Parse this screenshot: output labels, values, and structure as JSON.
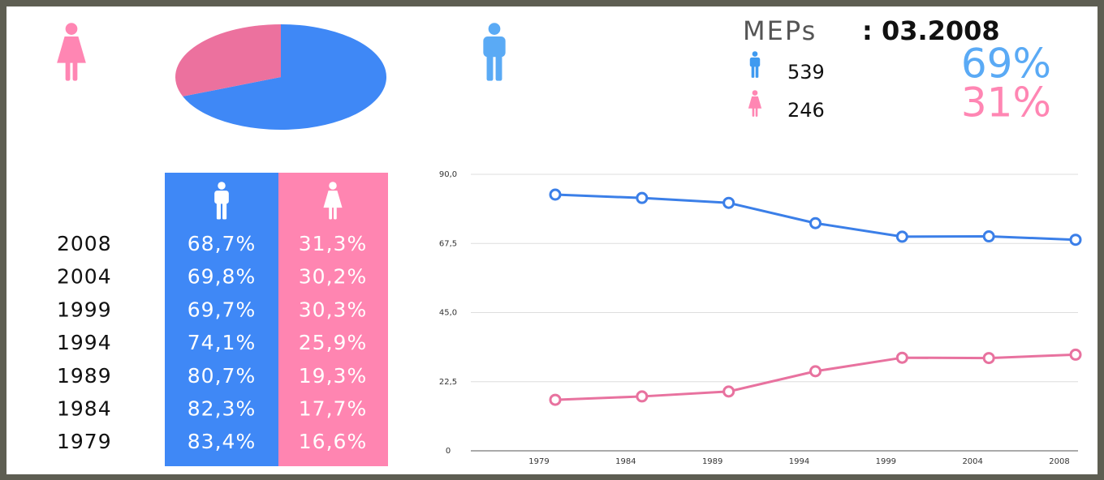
{
  "header": {
    "title": "MEPs",
    "date": ": 03.2008"
  },
  "summary": [
    {
      "count": "539",
      "percent": "69%"
    },
    {
      "count": "246",
      "percent": "31%"
    }
  ],
  "table": {
    "rows": [
      [
        "2008",
        "68,7%",
        "31,3%"
      ],
      [
        "2004",
        "69,8%",
        "30,2%"
      ],
      [
        "1999",
        "69,7%",
        "30,3%"
      ],
      [
        "1994",
        "74,1%",
        "25,9%"
      ],
      [
        "1989",
        "80,7%",
        "19,3%"
      ],
      [
        "1984",
        "82,3%",
        "17,7%"
      ],
      [
        "1979",
        "83,4%",
        "16,6%"
      ]
    ]
  },
  "chart_data": [
    {
      "type": "pie",
      "values": [
        69,
        31
      ],
      "colors": [
        "#3f88f6",
        "#ec719e"
      ]
    },
    {
      "type": "line",
      "categories": [
        "1979",
        "1984",
        "1989",
        "1994",
        "1999",
        "2004",
        "2008"
      ],
      "series": [
        {
          "color": "#3b7fe8",
          "values": [
            83.4,
            82.3,
            80.7,
            74.1,
            69.7,
            69.8,
            68.7
          ]
        },
        {
          "color": "#e8729f",
          "values": [
            16.6,
            17.7,
            19.3,
            25.9,
            30.3,
            30.2,
            31.3
          ]
        }
      ],
      "ylim": [
        0,
        90
      ],
      "yticks": [
        0,
        {
          "value": 22.5,
          "label": "22,5"
        },
        {
          "value": 45,
          "label": "45,0"
        },
        {
          "value": 67.5,
          "label": "67,5"
        },
        {
          "value": 90,
          "label": "90,0"
        }
      ],
      "grid": true
    }
  ]
}
